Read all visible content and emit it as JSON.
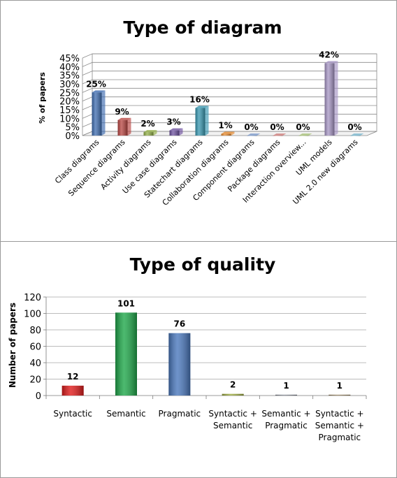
{
  "chart_data": [
    {
      "type": "bar",
      "title": "Type of diagram",
      "xlabel": "",
      "ylabel": "% of papers",
      "ylim": [
        0,
        45
      ],
      "yticks": [
        "0%",
        "5%",
        "10%",
        "15%",
        "20%",
        "25%",
        "30%",
        "35%",
        "40%",
        "45%"
      ],
      "grid": true,
      "categories": [
        "Class diagrams",
        "Sequence diagrams",
        "Activity diagrams",
        "Use case diagrams",
        "Statechart diagrams",
        "Collaboration diagrams",
        "Component diagrams",
        "Package diagrams",
        "Interaction overview...",
        "UML models",
        "UML 2.0 new diagrams"
      ],
      "values": [
        25,
        9,
        2,
        3,
        16,
        1,
        0,
        0,
        0,
        42,
        0
      ],
      "data_labels": [
        "25%",
        "9%",
        "2%",
        "3%",
        "16%",
        "1%",
        "0%",
        "0%",
        "0%",
        "42%",
        "0%"
      ],
      "colors": [
        "#3d6cb0",
        "#b84440",
        "#93b048",
        "#6e52a0",
        "#3797b0",
        "#e5892e",
        "#7d9acb",
        "#ce7e7c",
        "#a9c27a",
        "#a695c4",
        "#79b7cd"
      ]
    },
    {
      "type": "bar",
      "title": "Type of quality",
      "xlabel": "",
      "ylabel": "Number of papers",
      "ylim": [
        0,
        120
      ],
      "yticks": [
        "0",
        "20",
        "40",
        "60",
        "80",
        "100",
        "120"
      ],
      "grid": true,
      "categories": [
        [
          "Syntactic"
        ],
        [
          "Semantic"
        ],
        [
          "Pragmatic"
        ],
        [
          "Syntactic +",
          "Semantic"
        ],
        [
          "Semantic +",
          "Pragmatic"
        ],
        [
          "Syntactic +",
          "Semantic +",
          "Pragmatic"
        ]
      ],
      "values": [
        12,
        101,
        76,
        2,
        1,
        1
      ],
      "data_labels": [
        "12",
        "101",
        "76",
        "2",
        "1",
        "1"
      ],
      "colors": [
        "#e01b1b",
        "#1fa84a",
        "#4a78bd",
        "#9aa83a",
        "#7a7f8a",
        "#8f7a55"
      ]
    }
  ]
}
